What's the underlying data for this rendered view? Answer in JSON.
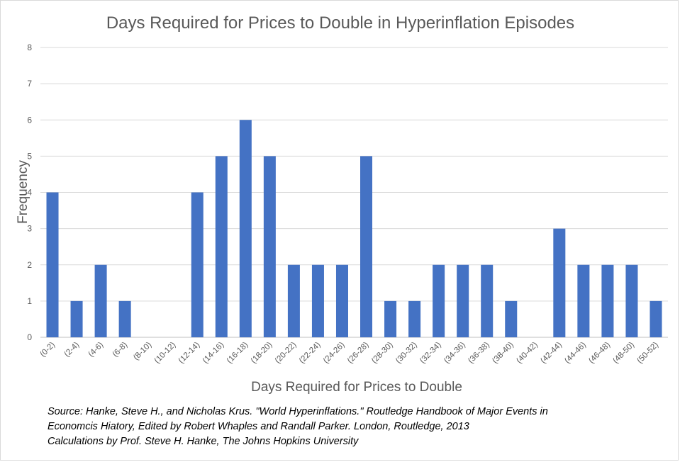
{
  "chart_data": {
    "type": "bar",
    "title": "Days Required for Prices to Double in Hyperinflation Episodes",
    "xlabel": "Days Required for Prices to Double",
    "ylabel": "Frequency",
    "categories": [
      "(0-2)",
      "(2-4)",
      "(4-6)",
      "(6-8)",
      "(8-10)",
      "(10-12)",
      "(12-14)",
      "(14-16)",
      "(16-18)",
      "(18-20)",
      "(20-22)",
      "(22-24)",
      "(24-26)",
      "(26-28)",
      "(28-30)",
      "(30-32)",
      "(32-34)",
      "(34-36)",
      "(36-38)",
      "(38-40)",
      "(40-42)",
      "(42-44)",
      "(44-46)",
      "(46-48)",
      "(48-50)",
      "(50-52)"
    ],
    "values": [
      4,
      1,
      2,
      1,
      0,
      0,
      4,
      5,
      6,
      5,
      2,
      2,
      2,
      5,
      1,
      1,
      2,
      2,
      2,
      1,
      0,
      3,
      2,
      2,
      2,
      1
    ],
    "ylim": [
      0,
      8
    ],
    "yticks": [
      0,
      1,
      2,
      3,
      4,
      5,
      6,
      7,
      8
    ],
    "grid": true,
    "legend": "none",
    "colors": {
      "bar": "#4472c4",
      "grid": "#d9d9d9",
      "text": "#595959"
    }
  },
  "source_note": {
    "line1": "Source: Hanke, Steve H., and Nicholas Krus. \"World Hyperinflations.\" Routledge Handbook of Major Events in",
    "line2": "Economcis Hiatory, Edited by Robert Whaples and Randall Parker. London, Routledge, 2013",
    "line3": "Calculations by Prof. Steve H. Hanke, The Johns Hopkins University"
  }
}
